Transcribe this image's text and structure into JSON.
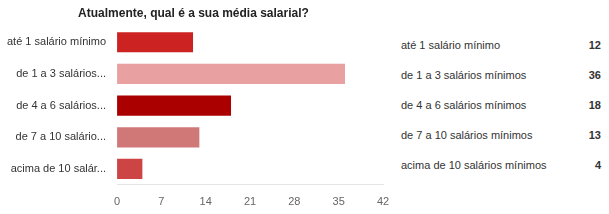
{
  "chart_data": {
    "type": "bar",
    "orientation": "horizontal",
    "title": "Atualmente, qual é a sua média salarial?",
    "categories": [
      "até 1 salário mínimo",
      "de 1 a 3 salários...",
      "de 4 a 6 salários...",
      "de 7 a 10 salário...",
      "acima de 10 salár..."
    ],
    "values": [
      12,
      36,
      18,
      13,
      4
    ],
    "colors": [
      "#cc2222",
      "#e8a0a0",
      "#aa0000",
      "#d07878",
      "#cc4444"
    ],
    "xlim": [
      0,
      42
    ],
    "xticks": [
      0,
      7,
      14,
      21,
      28,
      35,
      42
    ],
    "grid": false,
    "annotations": [
      {
        "text": "até 1 salário mínimo",
        "value": 12
      },
      {
        "text": "de 1 a 3 salários mínimos",
        "value": 36
      },
      {
        "text": "de 4 a 6 salários mínimos",
        "value": 18
      },
      {
        "text": "de 7 a 10 salários mínimos",
        "value": 13
      },
      {
        "text": "acima de 10 salários mínimos",
        "value": 4
      }
    ]
  }
}
